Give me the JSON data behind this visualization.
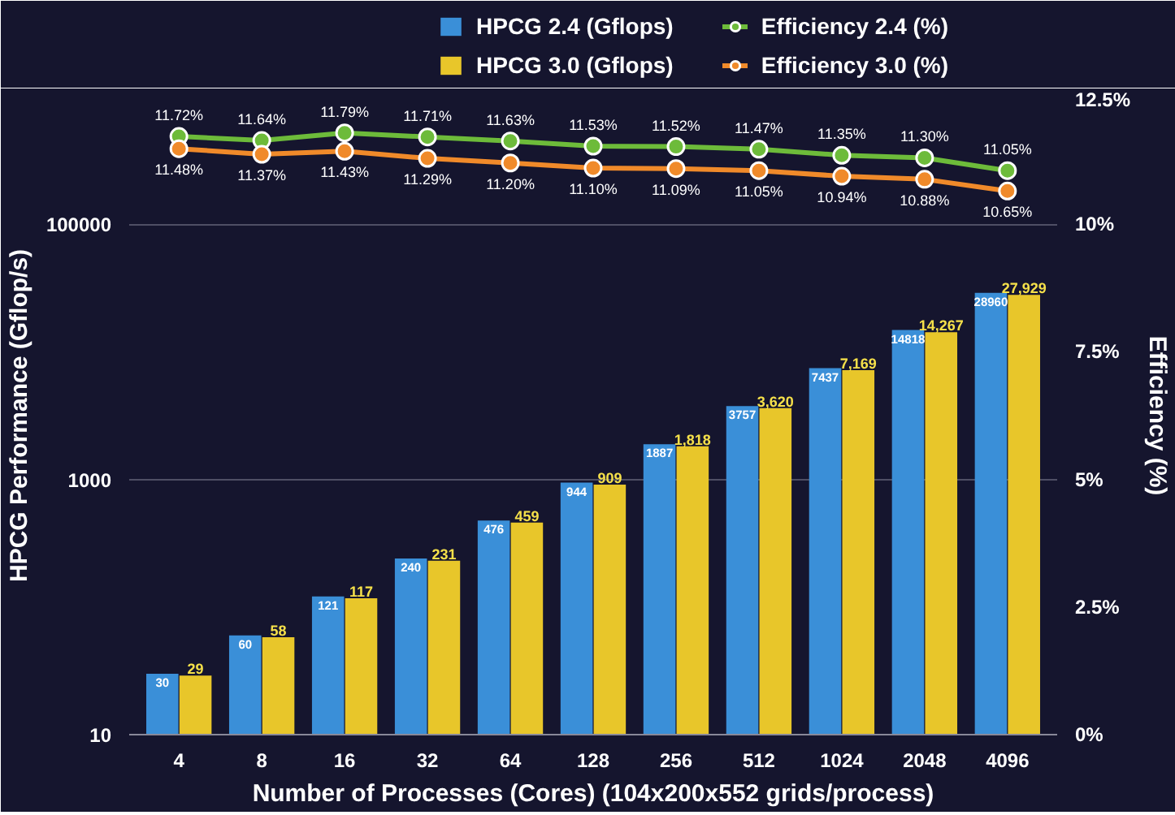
{
  "chart_data": {
    "type": "bar",
    "xlabel": "Number of Processes (Cores) (104x200x552 grids/process)",
    "ylabel": "HPCG Performance (Gflop/s)",
    "y2label": "Efficiency (%)",
    "categories": [
      "4",
      "8",
      "16",
      "32",
      "64",
      "128",
      "256",
      "512",
      "1024",
      "2048",
      "4096"
    ],
    "log": "y",
    "ylim": [
      10,
      1000000
    ],
    "yticks": [
      10,
      1000,
      100000
    ],
    "y2lim": [
      0,
      12.5
    ],
    "y2ticks": [
      {
        "value": 0,
        "label": "0%"
      },
      {
        "value": 2.5,
        "label": "2.5%"
      },
      {
        "value": 5,
        "label": "5%"
      },
      {
        "value": 7.5,
        "label": "7.5%"
      },
      {
        "value": 10,
        "label": "10%"
      },
      {
        "value": 12.5,
        "label": "12.5%"
      }
    ],
    "grid": "y",
    "legend": "top",
    "marker": "circle",
    "series": [
      {
        "name": "HPCG 2.4 (Gflops)",
        "color": "#3a8fd8",
        "values": [
          30,
          60,
          121,
          240,
          476,
          944,
          1887,
          3757,
          7437,
          14818,
          28960
        ],
        "value_labels": [
          "30",
          "60",
          "121",
          "240",
          "476",
          "944",
          "1887",
          "3757",
          "7437",
          "14818",
          "28960"
        ]
      },
      {
        "name": "HPCG 3.0 (Gflops)",
        "color": "#e8c62a",
        "values": [
          29,
          58,
          117,
          231,
          459,
          909,
          1818,
          3620,
          7169,
          14267,
          27929
        ],
        "value_labels": [
          "29",
          "58",
          "117",
          "231",
          "459",
          "909",
          "1,818",
          "3,620",
          "7,169",
          "14,267",
          "27,929"
        ]
      },
      {
        "name": "Efficiency 2.4 (%)",
        "type": "line",
        "axis": "y2",
        "color": "#6dbb3a",
        "values": [
          11.72,
          11.64,
          11.79,
          11.71,
          11.63,
          11.53,
          11.52,
          11.47,
          11.35,
          11.3,
          11.05
        ],
        "value_labels": [
          "11.72%",
          "11.64%",
          "11.79%",
          "11.71%",
          "11.63%",
          "11.53%",
          "11.52%",
          "11.47%",
          "11.35%",
          "11.30%",
          "11.05%"
        ]
      },
      {
        "name": "Efficiency 3.0 (%)",
        "type": "line",
        "axis": "y2",
        "color": "#f08a2a",
        "values": [
          11.48,
          11.37,
          11.43,
          11.29,
          11.2,
          11.1,
          11.09,
          11.05,
          10.94,
          10.88,
          10.65
        ],
        "value_labels": [
          "11.48%",
          "11.37%",
          "11.43%",
          "11.29%",
          "11.20%",
          "11.10%",
          "11.09%",
          "11.05%",
          "10.94%",
          "10.88%",
          "10.65%"
        ]
      }
    ]
  }
}
